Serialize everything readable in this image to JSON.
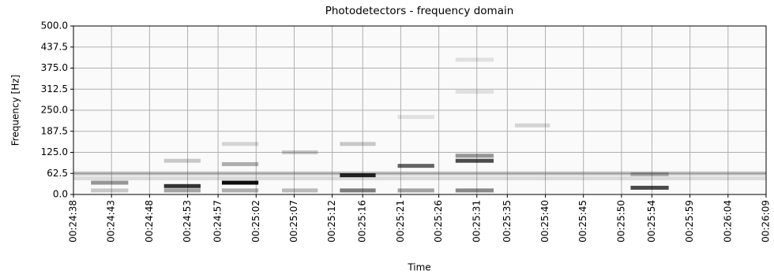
{
  "chart_data": {
    "type": "spectrogram",
    "title": "Photodetectors - frequency domain",
    "xlabel": "Time",
    "ylabel": "Frequency [Hz]",
    "xlim": [
      1478,
      1569
    ],
    "ylim": [
      0,
      500
    ],
    "yticks": [
      {
        "value": 0,
        "label": "0.0"
      },
      {
        "value": 62.5,
        "label": "62.5"
      },
      {
        "value": 125,
        "label": "125.0"
      },
      {
        "value": 187.5,
        "label": "187.5"
      },
      {
        "value": 250,
        "label": "250.0"
      },
      {
        "value": 312.5,
        "label": "312.5"
      },
      {
        "value": 375,
        "label": "375.0"
      },
      {
        "value": 437.5,
        "label": "437.5"
      },
      {
        "value": 500,
        "label": "500.0"
      }
    ],
    "xticks": [
      {
        "value": 1478,
        "label": "00:24:38"
      },
      {
        "value": 1483,
        "label": "00:24:43"
      },
      {
        "value": 1488,
        "label": "00:24:48"
      },
      {
        "value": 1493,
        "label": "00:24:53"
      },
      {
        "value": 1497,
        "label": "00:24:57"
      },
      {
        "value": 1502,
        "label": "00:25:02"
      },
      {
        "value": 1507,
        "label": "00:25:07"
      },
      {
        "value": 1512,
        "label": "00:25:12"
      },
      {
        "value": 1516,
        "label": "00:25:16"
      },
      {
        "value": 1521,
        "label": "00:25:21"
      },
      {
        "value": 1526,
        "label": "00:25:26"
      },
      {
        "value": 1531,
        "label": "00:25:31"
      },
      {
        "value": 1535,
        "label": "00:25:35"
      },
      {
        "value": 1540,
        "label": "00:25:40"
      },
      {
        "value": 1545,
        "label": "00:25:45"
      },
      {
        "value": 1550,
        "label": "00:25:50"
      },
      {
        "value": 1554,
        "label": "00:25:54"
      },
      {
        "value": 1559,
        "label": "00:25:59"
      },
      {
        "value": 1564,
        "label": "00:26:04"
      },
      {
        "value": 1569,
        "label": "00:26:09"
      }
    ],
    "grid": true,
    "color": "#000000",
    "features": [
      {
        "t": [
          1478,
          1569
        ],
        "f": 62.5,
        "intensity": 0.22
      },
      {
        "t": [
          1478,
          1569
        ],
        "f": 48,
        "intensity": 0.12
      },
      {
        "t": [
          1480.3,
          1485.2
        ],
        "f": 35,
        "intensity": 0.4
      },
      {
        "t": [
          1480.3,
          1485.2
        ],
        "f": 12,
        "intensity": 0.2
      },
      {
        "t": [
          1489.9,
          1494.7
        ],
        "f": 25,
        "intensity": 0.8
      },
      {
        "t": [
          1489.9,
          1494.7
        ],
        "f": 100,
        "intensity": 0.2
      },
      {
        "t": [
          1489.9,
          1494.7
        ],
        "f": 12,
        "intensity": 0.35
      },
      {
        "t": [
          1497.5,
          1502.3
        ],
        "f": 35,
        "intensity": 0.95
      },
      {
        "t": [
          1497.5,
          1502.3
        ],
        "f": 90,
        "intensity": 0.3
      },
      {
        "t": [
          1497.5,
          1502.3
        ],
        "f": 150,
        "intensity": 0.15
      },
      {
        "t": [
          1497.5,
          1502.3
        ],
        "f": 12,
        "intensity": 0.3
      },
      {
        "t": [
          1505.4,
          1510.1
        ],
        "f": 125,
        "intensity": 0.2
      },
      {
        "t": [
          1505.4,
          1510.1
        ],
        "f": 12,
        "intensity": 0.25
      },
      {
        "t": [
          1513,
          1517.7
        ],
        "f": 57,
        "intensity": 0.85
      },
      {
        "t": [
          1513,
          1517.7
        ],
        "f": 150,
        "intensity": 0.2
      },
      {
        "t": [
          1513,
          1517.7
        ],
        "f": 12,
        "intensity": 0.5
      },
      {
        "t": [
          1520.6,
          1525.4
        ],
        "f": 85,
        "intensity": 0.6
      },
      {
        "t": [
          1520.6,
          1525.4
        ],
        "f": 230,
        "intensity": 0.1
      },
      {
        "t": [
          1520.6,
          1525.4
        ],
        "f": 12,
        "intensity": 0.35
      },
      {
        "t": [
          1528.2,
          1533.2
        ],
        "f": 100,
        "intensity": 0.7
      },
      {
        "t": [
          1528.2,
          1533.2
        ],
        "f": 115,
        "intensity": 0.4
      },
      {
        "t": [
          1528.2,
          1533.2
        ],
        "f": 305,
        "intensity": 0.1
      },
      {
        "t": [
          1528.2,
          1533.2
        ],
        "f": 400,
        "intensity": 0.1
      },
      {
        "t": [
          1528.2,
          1533.2
        ],
        "f": 12,
        "intensity": 0.45
      },
      {
        "t": [
          1536,
          1540.6
        ],
        "f": 205,
        "intensity": 0.15
      },
      {
        "t": [
          1551.2,
          1556.2
        ],
        "f": 20,
        "intensity": 0.7
      },
      {
        "t": [
          1551.2,
          1556.2
        ],
        "f": 60,
        "intensity": 0.25
      }
    ]
  }
}
